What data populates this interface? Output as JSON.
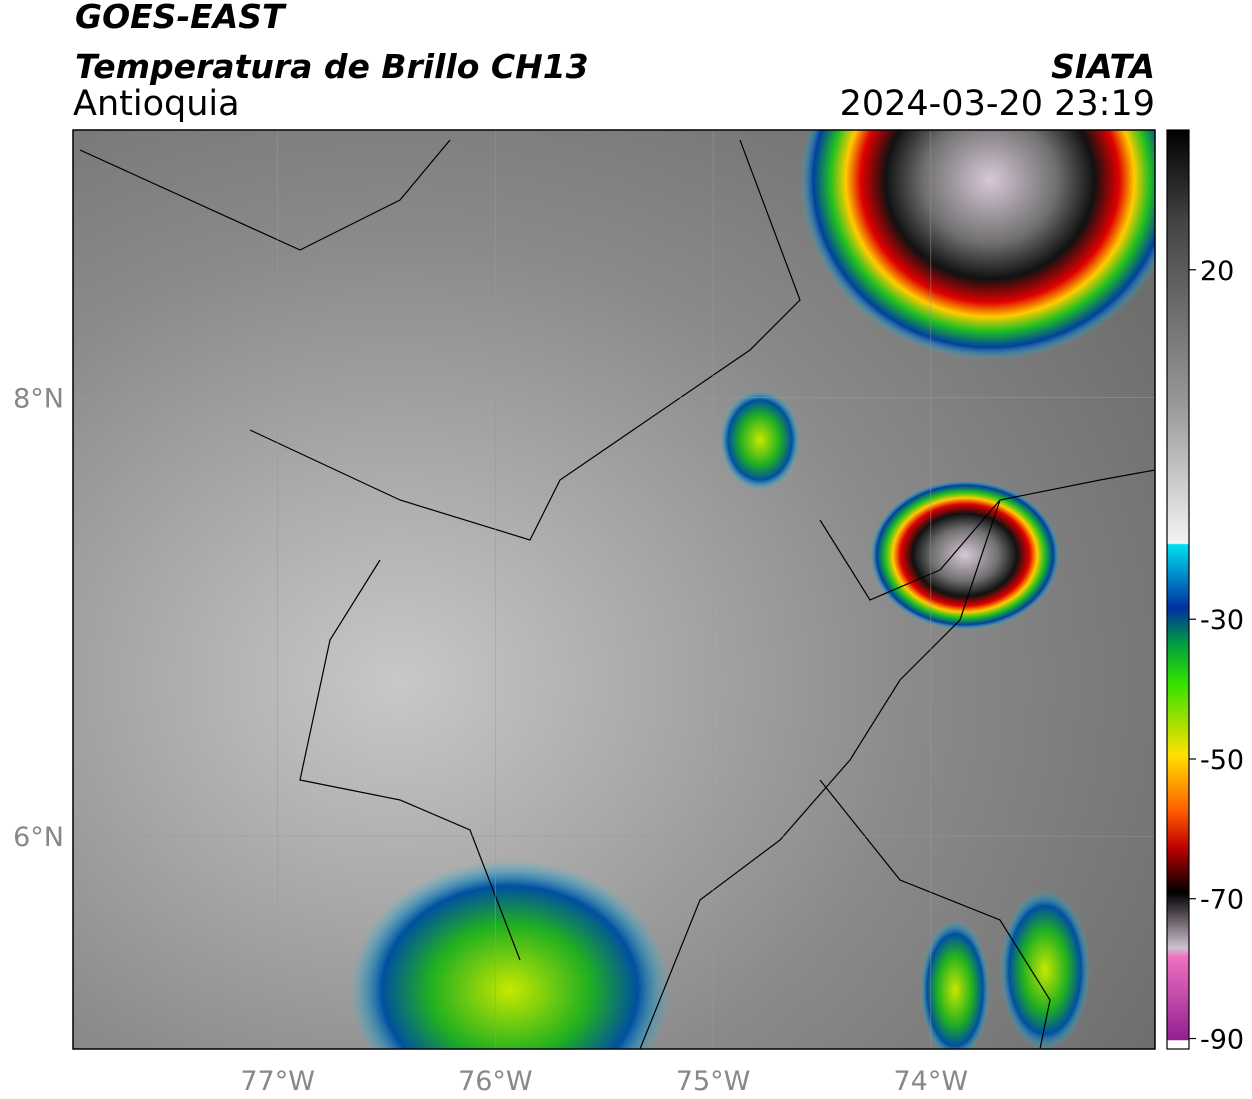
{
  "header": {
    "title": "GOES-EAST",
    "subtitle": "Temperatura de Brillo CH13",
    "region": "Antioquia",
    "source": "SIATA",
    "datetime": "2024-03-20 23:19"
  },
  "map": {
    "lonlim": [
      -77.94,
      -72.97
    ],
    "latlim": [
      5.03,
      9.22
    ],
    "lon_ticks": [
      {
        "value": -77,
        "label": "77°W"
      },
      {
        "value": -76,
        "label": "76°W"
      },
      {
        "value": -75,
        "label": "75°W"
      },
      {
        "value": -74,
        "label": "74°W"
      }
    ],
    "lat_ticks": [
      {
        "value": 8,
        "label": "8°N"
      },
      {
        "value": 6,
        "label": "6°N"
      }
    ]
  },
  "colorbar": {
    "lim": [
      -91.5,
      40
    ],
    "ticks": [
      20,
      -30,
      -50,
      -70,
      -90
    ]
  }
}
